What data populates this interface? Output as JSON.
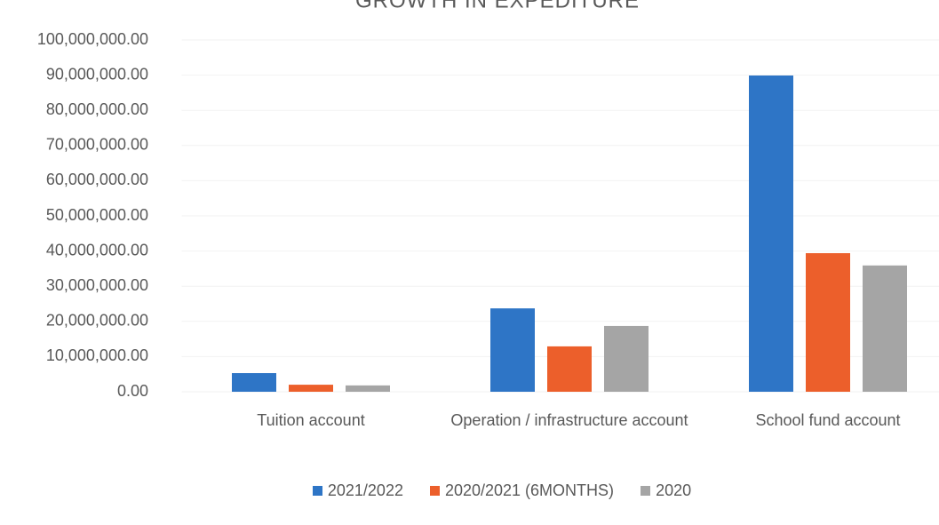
{
  "chart_data": {
    "type": "bar",
    "title": "GROWTH IN EXPEDITURE",
    "categories": [
      "Tuition account",
      "Operation / infrastructure account",
      "School fund account"
    ],
    "series": [
      {
        "name": "2021/2022",
        "color": "#2e75c6",
        "values": [
          5300000,
          23700000,
          89900000
        ]
      },
      {
        "name": "2020/2021 (6MONTHS)",
        "color": "#ec5f2b",
        "values": [
          2000000,
          12900000,
          39400000
        ]
      },
      {
        "name": "2020",
        "color": "#a5a5a5",
        "values": [
          1800000,
          18700000,
          35900000
        ]
      }
    ],
    "ylim": [
      0,
      100000000
    ],
    "yticks": [
      {
        "value": 0,
        "label": "0.00"
      },
      {
        "value": 10000000,
        "label": "10,000,000.00"
      },
      {
        "value": 20000000,
        "label": "20,000,000.00"
      },
      {
        "value": 30000000,
        "label": "30,000,000.00"
      },
      {
        "value": 40000000,
        "label": "40,000,000.00"
      },
      {
        "value": 50000000,
        "label": "50,000,000.00"
      },
      {
        "value": 60000000,
        "label": "60,000,000.00"
      },
      {
        "value": 70000000,
        "label": "70,000,000.00"
      },
      {
        "value": 80000000,
        "label": "80,000,000.00"
      },
      {
        "value": 90000000,
        "label": "90,000,000.00"
      },
      {
        "value": 100000000,
        "label": "100,000,000.00"
      }
    ],
    "grid": true
  }
}
